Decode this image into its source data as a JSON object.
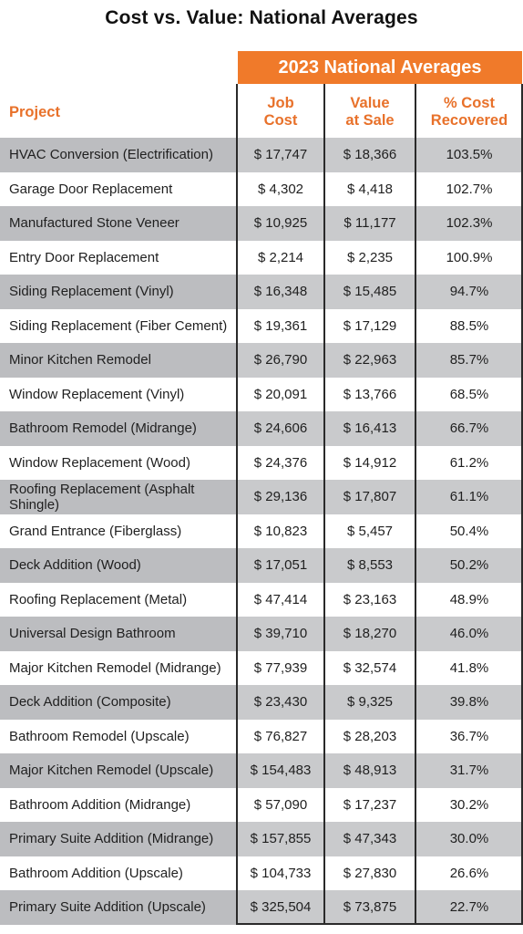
{
  "chart_data": {
    "type": "table",
    "title": "Cost vs. Value: National Averages",
    "group_header": "2023 National Averages",
    "columns": {
      "project": "Project",
      "job_cost": "Job\nCost",
      "value_at_sale": "Value\nat Sale",
      "pct_recovered": "% Cost\nRecovered"
    },
    "rows": [
      {
        "project": "HVAC Conversion (Electrification)",
        "job_cost": "$ 17,747",
        "value_at_sale": "$ 18,366",
        "pct_recovered": "103.5%"
      },
      {
        "project": "Garage Door Replacement",
        "job_cost": "$ 4,302",
        "value_at_sale": "$ 4,418",
        "pct_recovered": "102.7%"
      },
      {
        "project": "Manufactured Stone Veneer",
        "job_cost": "$ 10,925",
        "value_at_sale": "$ 11,177",
        "pct_recovered": "102.3%"
      },
      {
        "project": "Entry Door Replacement",
        "job_cost": "$ 2,214",
        "value_at_sale": "$ 2,235",
        "pct_recovered": "100.9%"
      },
      {
        "project": "Siding Replacement (Vinyl)",
        "job_cost": "$ 16,348",
        "value_at_sale": "$ 15,485",
        "pct_recovered": "94.7%"
      },
      {
        "project": "Siding Replacement (Fiber Cement)",
        "job_cost": "$ 19,361",
        "value_at_sale": "$ 17,129",
        "pct_recovered": "88.5%"
      },
      {
        "project": "Minor Kitchen Remodel",
        "job_cost": "$ 26,790",
        "value_at_sale": "$ 22,963",
        "pct_recovered": "85.7%"
      },
      {
        "project": "Window Replacement (Vinyl)",
        "job_cost": "$ 20,091",
        "value_at_sale": "$ 13,766",
        "pct_recovered": "68.5%"
      },
      {
        "project": "Bathroom Remodel (Midrange)",
        "job_cost": "$ 24,606",
        "value_at_sale": "$ 16,413",
        "pct_recovered": "66.7%"
      },
      {
        "project": "Window Replacement (Wood)",
        "job_cost": "$ 24,376",
        "value_at_sale": "$ 14,912",
        "pct_recovered": "61.2%"
      },
      {
        "project": "Roofing Replacement (Asphalt Shingle)",
        "job_cost": "$ 29,136",
        "value_at_sale": "$ 17,807",
        "pct_recovered": "61.1%"
      },
      {
        "project": "Grand Entrance (Fiberglass)",
        "job_cost": "$ 10,823",
        "value_at_sale": "$ 5,457",
        "pct_recovered": "50.4%"
      },
      {
        "project": "Deck Addition (Wood)",
        "job_cost": "$ 17,051",
        "value_at_sale": "$ 8,553",
        "pct_recovered": "50.2%"
      },
      {
        "project": "Roofing Replacement (Metal)",
        "job_cost": "$ 47,414",
        "value_at_sale": "$ 23,163",
        "pct_recovered": "48.9%"
      },
      {
        "project": "Universal Design Bathroom",
        "job_cost": "$ 39,710",
        "value_at_sale": "$ 18,270",
        "pct_recovered": "46.0%"
      },
      {
        "project": "Major Kitchen Remodel (Midrange)",
        "job_cost": "$ 77,939",
        "value_at_sale": "$ 32,574",
        "pct_recovered": "41.8%"
      },
      {
        "project": "Deck Addition (Composite)",
        "job_cost": "$ 23,430",
        "value_at_sale": "$ 9,325",
        "pct_recovered": "39.8%"
      },
      {
        "project": "Bathroom Remodel (Upscale)",
        "job_cost": "$ 76,827",
        "value_at_sale": "$ 28,203",
        "pct_recovered": "36.7%"
      },
      {
        "project": "Major Kitchen Remodel (Upscale)",
        "job_cost": "$ 154,483",
        "value_at_sale": "$ 48,913",
        "pct_recovered": "31.7%"
      },
      {
        "project": "Bathroom Addition (Midrange)",
        "job_cost": "$ 57,090",
        "value_at_sale": "$ 17,237",
        "pct_recovered": "30.2%"
      },
      {
        "project": "Primary Suite Addition (Midrange)",
        "job_cost": "$ 157,855",
        "value_at_sale": "$ 47,343",
        "pct_recovered": "30.0%"
      },
      {
        "project": "Bathroom Addition (Upscale)",
        "job_cost": "$ 104,733",
        "value_at_sale": "$ 27,830",
        "pct_recovered": "26.6%"
      },
      {
        "project": "Primary Suite Addition (Upscale)",
        "job_cost": "$ 325,504",
        "value_at_sale": "$ 73,875",
        "pct_recovered": "22.7%"
      }
    ]
  },
  "colors": {
    "accent": "#f07a2a",
    "header_text": "#e8712a",
    "row_shade": "#bcbdc0",
    "rule": "#2a2a2a"
  }
}
